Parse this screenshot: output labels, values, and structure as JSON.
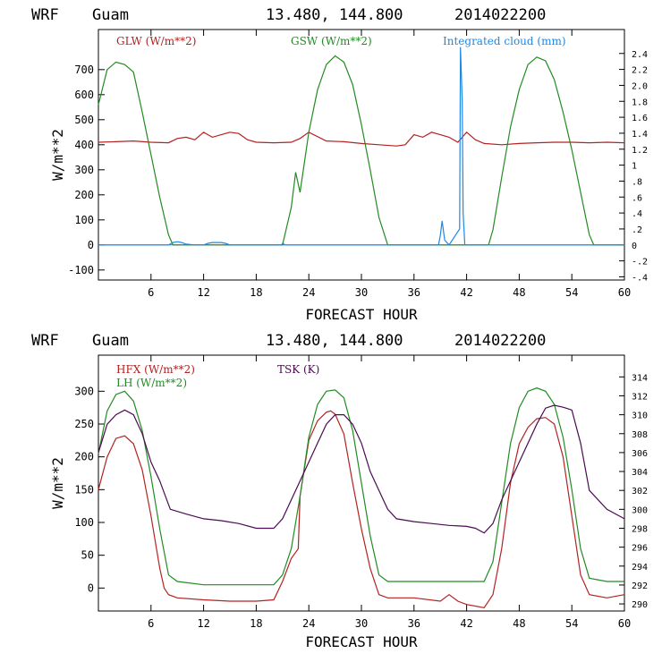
{
  "chart_data": [
    {
      "type": "line",
      "header": {
        "model": "WRF",
        "location": "Guam",
        "coords": "13.480, 144.800",
        "init": "2014022200"
      },
      "xlabel": "FORECAST HOUR",
      "ylabel": "W/m**2",
      "xlim": [
        0,
        60
      ],
      "xticks": [
        6,
        12,
        18,
        24,
        30,
        36,
        42,
        48,
        54,
        60
      ],
      "ylim": [
        -140,
        860
      ],
      "yticks": [
        -100,
        0,
        100,
        200,
        300,
        400,
        500,
        600,
        700
      ],
      "ylim_right": [
        -0.44,
        2.7
      ],
      "yticks_right": [
        -0.4,
        -0.2,
        0,
        0.2,
        0.4,
        0.6,
        0.8,
        1.0,
        1.2,
        1.4,
        1.6,
        1.8,
        2.0,
        2.2,
        2.4
      ],
      "yticks_right_labels": [
        "-.4",
        "-.2",
        "0",
        ".2",
        ".4",
        ".6",
        ".8",
        "1",
        "1.2",
        "1.4",
        "1.6",
        "1.8",
        "2.0",
        "2.2",
        "2.4"
      ],
      "series": [
        {
          "name": "GLW (W/m**2)",
          "axis": "left",
          "color": "#b22222",
          "x": [
            0,
            2,
            4,
            6,
            8,
            9,
            10,
            11,
            12,
            13,
            14,
            15,
            16,
            17,
            18,
            20,
            22,
            23,
            24,
            26,
            28,
            30,
            32,
            34,
            35,
            36,
            37,
            38,
            39,
            40,
            41,
            42,
            43,
            44,
            46,
            48,
            50,
            52,
            54,
            56,
            58,
            60
          ],
          "y": [
            410,
            412,
            415,
            410,
            408,
            425,
            430,
            420,
            450,
            430,
            440,
            450,
            445,
            420,
            410,
            408,
            410,
            425,
            450,
            415,
            412,
            405,
            400,
            395,
            400,
            440,
            430,
            450,
            440,
            430,
            410,
            450,
            420,
            405,
            400,
            405,
            408,
            410,
            410,
            408,
            410,
            408
          ]
        },
        {
          "name": "GSW (W/m**2)",
          "axis": "left",
          "color": "#228b22",
          "x": [
            0,
            1,
            2,
            3,
            4,
            5,
            6,
            7,
            8,
            8.5,
            21,
            22,
            22.5,
            23,
            24,
            25,
            26,
            27,
            28,
            29,
            30,
            31,
            32,
            33,
            44.5,
            45,
            46,
            47,
            48,
            49,
            50,
            51,
            52,
            53,
            54,
            55,
            56,
            56.5,
            60
          ],
          "y": [
            560,
            700,
            730,
            720,
            690,
            530,
            360,
            190,
            40,
            0,
            0,
            150,
            290,
            210,
            450,
            620,
            720,
            755,
            730,
            640,
            480,
            300,
            110,
            0,
            0,
            60,
            270,
            470,
            620,
            720,
            750,
            735,
            660,
            530,
            380,
            210,
            40,
            0,
            0
          ]
        },
        {
          "name": "Integrated cloud (mm)",
          "axis": "right",
          "color": "#1e88e5",
          "x": [
            0,
            5,
            8,
            8.5,
            9,
            9.5,
            10,
            11,
            12,
            12.5,
            13,
            14,
            14.5,
            15,
            18,
            20.9,
            21,
            21.3,
            22,
            24,
            27,
            35,
            38.8,
            39,
            39.2,
            39.5,
            40,
            41.2,
            41.3,
            41.5,
            41.6,
            41.8,
            42,
            45,
            60
          ],
          "y": [
            0,
            0,
            0,
            0.03,
            0.04,
            0.03,
            0.01,
            0,
            0,
            0.02,
            0.03,
            0.03,
            0.02,
            0,
            0,
            0,
            0.02,
            0,
            0,
            0,
            0,
            0,
            0,
            0.12,
            0.3,
            0.06,
            0,
            0.2,
            2.48,
            1.8,
            0.4,
            0,
            0,
            0,
            0
          ]
        }
      ]
    },
    {
      "type": "line",
      "header": {
        "model": "WRF",
        "location": "Guam",
        "coords": "13.480, 144.800",
        "init": "2014022200"
      },
      "xlabel": "FORECAST HOUR",
      "ylabel": "W/m**2",
      "xlim": [
        0,
        60
      ],
      "xticks": [
        6,
        12,
        18,
        24,
        30,
        36,
        42,
        48,
        54,
        60
      ],
      "ylim": [
        -35,
        355
      ],
      "yticks": [
        0,
        50,
        100,
        150,
        200,
        250,
        300
      ],
      "ylim_right": [
        289.25,
        316.3
      ],
      "yticks_right": [
        290,
        292,
        294,
        296,
        298,
        300,
        302,
        304,
        306,
        308,
        310,
        312,
        314
      ],
      "series": [
        {
          "name": "HFX (W/m**2)",
          "axis": "left",
          "color": "#b22222",
          "x": [
            0,
            1,
            2,
            3,
            4,
            5,
            6,
            7,
            7.5,
            8,
            9,
            12,
            15,
            18,
            20,
            21,
            22,
            22.8,
            23,
            24,
            25,
            26,
            26.5,
            27,
            28,
            29,
            30,
            31,
            32,
            33,
            36,
            39,
            40,
            41,
            42,
            44,
            45,
            46,
            47,
            48,
            49,
            50,
            51,
            52,
            53,
            54,
            55,
            56,
            58,
            60
          ],
          "y": [
            150,
            200,
            228,
            232,
            220,
            180,
            110,
            30,
            0,
            -10,
            -15,
            -18,
            -20,
            -20,
            -18,
            10,
            45,
            60,
            140,
            225,
            255,
            268,
            270,
            265,
            235,
            160,
            90,
            30,
            -10,
            -15,
            -15,
            -20,
            -10,
            -20,
            -25,
            -30,
            -10,
            60,
            160,
            220,
            245,
            258,
            260,
            250,
            200,
            110,
            20,
            -10,
            -15,
            -10
          ]
        },
        {
          "name": "LH (W/m**2)",
          "axis": "left",
          "color": "#228b22",
          "x": [
            0,
            1,
            2,
            3,
            4,
            5,
            6,
            7,
            8,
            9,
            12,
            15,
            18,
            20,
            21,
            22,
            23,
            24,
            25,
            26,
            27,
            28,
            29,
            30,
            31,
            32,
            33,
            36,
            40,
            44,
            45,
            46,
            47,
            48,
            49,
            50,
            51,
            52,
            53,
            54,
            55,
            56,
            58,
            60
          ],
          "y": [
            205,
            270,
            295,
            300,
            285,
            240,
            170,
            90,
            20,
            10,
            5,
            5,
            5,
            5,
            20,
            60,
            140,
            230,
            280,
            300,
            302,
            290,
            240,
            160,
            80,
            20,
            10,
            10,
            10,
            10,
            40,
            130,
            220,
            275,
            300,
            305,
            300,
            280,
            230,
            150,
            60,
            15,
            10,
            10
          ]
        },
        {
          "name": "TSK (K)",
          "axis": "right",
          "color": "#4b0b52",
          "x": [
            0,
            1,
            2,
            3,
            4,
            5,
            6,
            7,
            8,
            8.2,
            10,
            12,
            14,
            16,
            18,
            20,
            21,
            22,
            23,
            24,
            25,
            26,
            27,
            28,
            29,
            30,
            31,
            32,
            33,
            34,
            36,
            38,
            40,
            42,
            43,
            44,
            45,
            46,
            48,
            50,
            51,
            52,
            53,
            54,
            55,
            56,
            58,
            60
          ],
          "y": [
            306,
            309,
            310,
            310.5,
            310,
            308,
            305,
            303,
            300.5,
            300,
            299.5,
            299,
            298.8,
            298.5,
            298,
            298,
            299,
            301,
            303,
            305,
            307,
            309,
            310,
            310,
            309,
            307,
            304,
            302,
            300,
            299,
            298.7,
            298.5,
            298.3,
            298.2,
            298,
            297.5,
            298.5,
            301,
            305,
            309,
            310.7,
            311,
            310.8,
            310.5,
            307,
            302,
            300,
            299
          ]
        }
      ]
    }
  ]
}
